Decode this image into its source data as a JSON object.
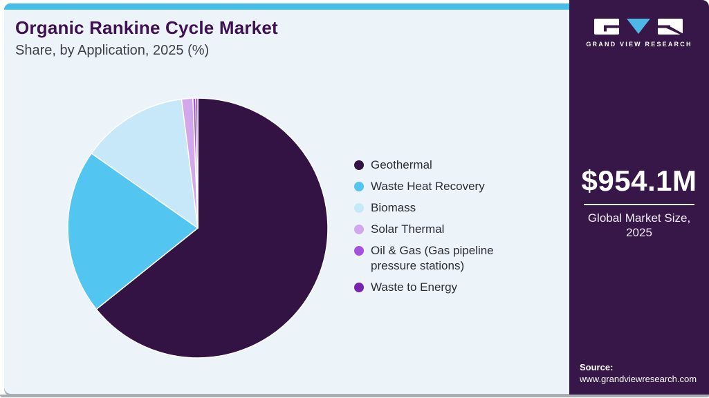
{
  "header": {
    "title": "Organic Rankine Cycle Market",
    "subtitle": "Share, by Application, 2025 (%)"
  },
  "branding": {
    "logo_text": "GRAND VIEW RESEARCH"
  },
  "sidebar": {
    "market_size": "$954.1M",
    "market_size_label_line1": "Global Market Size,",
    "market_size_label_line2": "2025",
    "source_label": "Source:",
    "source_url": "www.grandviewresearch.com"
  },
  "chart_data": {
    "type": "pie",
    "title": "Organic Rankine Cycle Market Share, by Application, 2025 (%)",
    "categories": [
      "Geothermal",
      "Waste Heat Recovery",
      "Biomass",
      "Solar Thermal",
      "Oil & Gas (Gas pipeline pressure stations)",
      "Waste to Energy"
    ],
    "values": [
      64.25,
      20.5,
      13.25,
      1.4,
      0.35,
      0.25
    ],
    "unit": "%",
    "colors": [
      "#331244",
      "#52c5f0",
      "#c7e8f9",
      "#d3a7eb",
      "#a551dd",
      "#7822ad"
    ],
    "start_angle_deg": 0,
    "direction": "clockwise",
    "legend_position": "right",
    "slice_border_color": "#ffffff"
  },
  "colors": {
    "accent_blue": "#45bde9",
    "card_bg": "#edf4f9",
    "sidebar_bg": "#371747",
    "title_color": "#3d1152",
    "subtitle_color": "#3e3e49",
    "legend_text": "#2c2c38",
    "shadow_gray": "#a9aeb5",
    "logo_triangle_blue": "#4db7e8"
  }
}
